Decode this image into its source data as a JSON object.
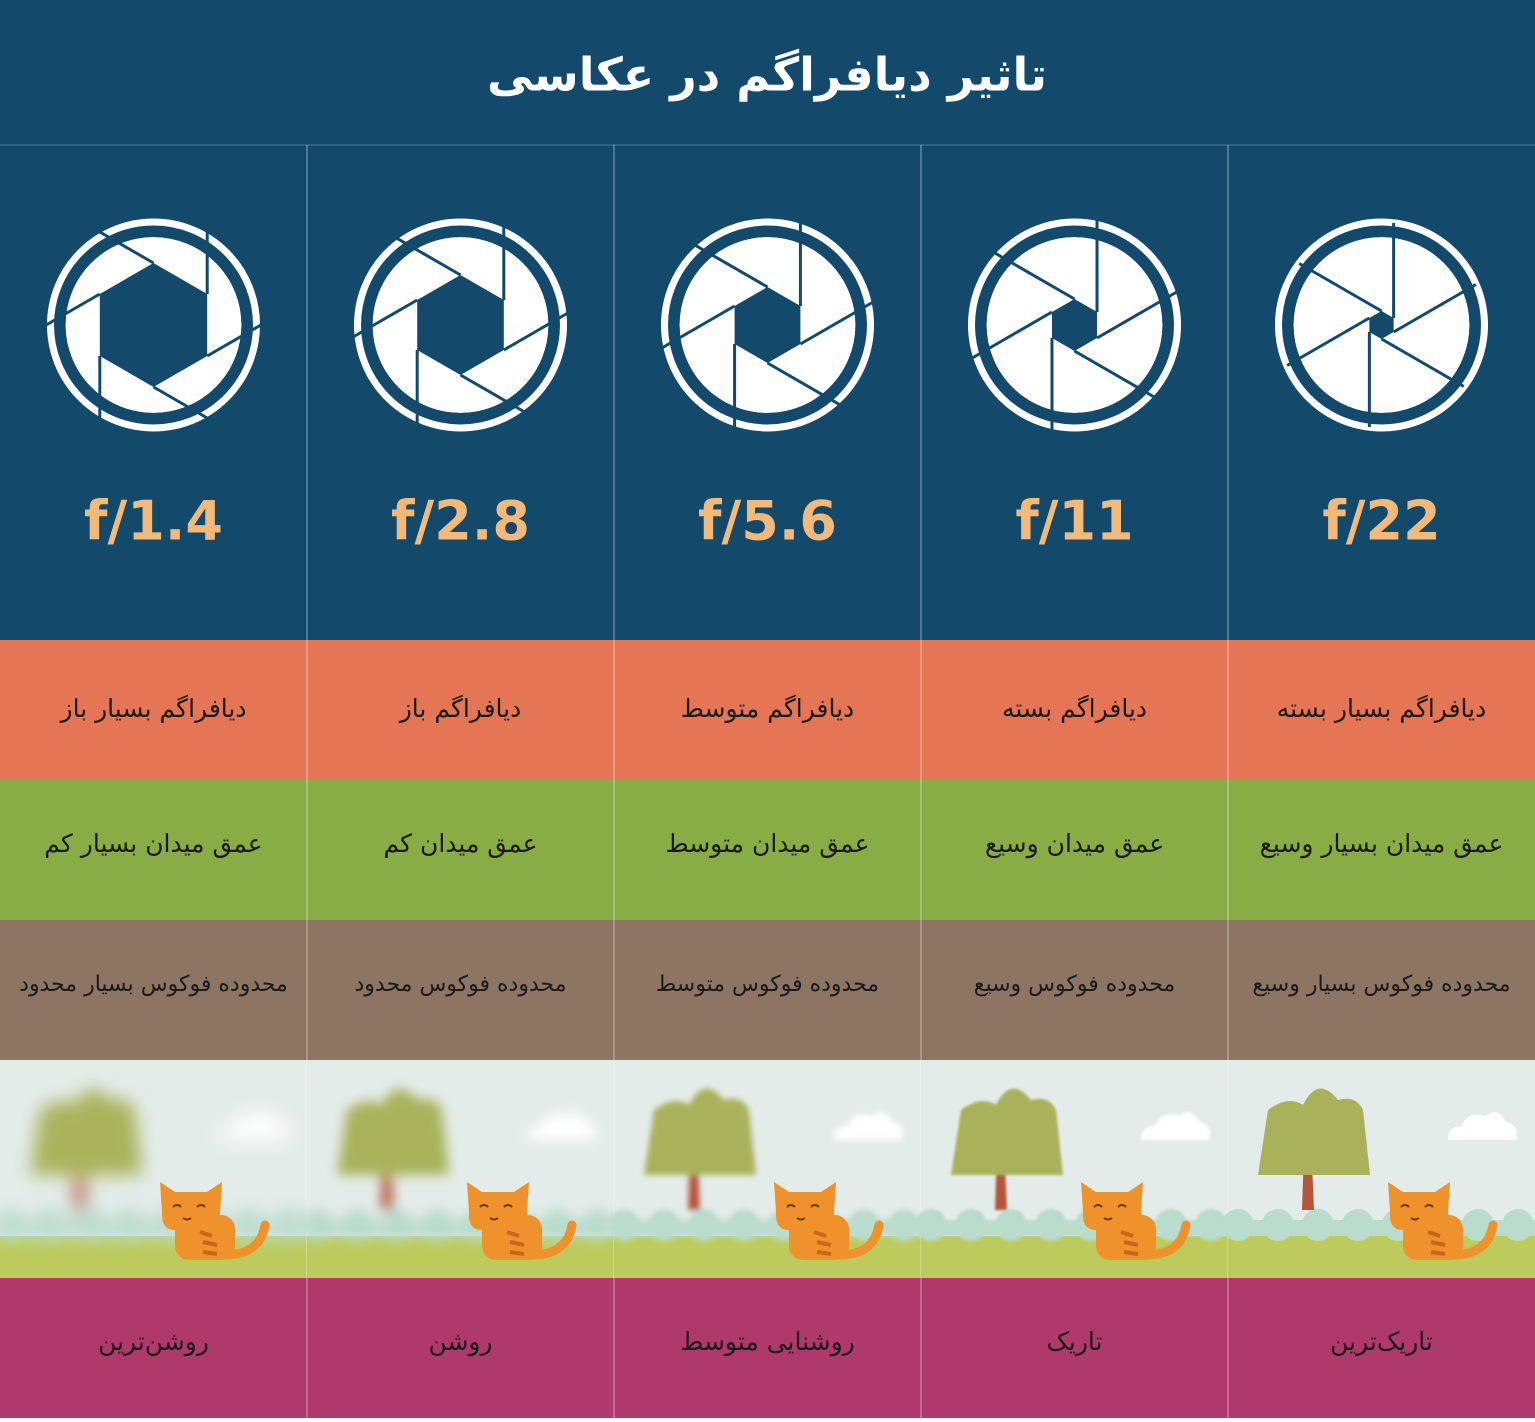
{
  "header": {
    "title": "تاثیر دیافراگم در عکاسی"
  },
  "columns": [
    {
      "f_stop": "f/1.4",
      "aperture": "دیافراگم بسیار باز",
      "depth_of_field": "عمق میدان بسیار کم",
      "focus_range": "محدوده فوکوس بسیار محدود",
      "brightness": "روشن‌ترین"
    },
    {
      "f_stop": "f/2.8",
      "aperture": "دیافراگم باز",
      "depth_of_field": "عمق میدان کم",
      "focus_range": "محدوده فوکوس محدود",
      "brightness": "روشن"
    },
    {
      "f_stop": "f/5.6",
      "aperture": "دیافراگم متوسط",
      "depth_of_field": "عمق میدان متوسط",
      "focus_range": "محدوده فوکوس متوسط",
      "brightness": "روشنایی متوسط"
    },
    {
      "f_stop": "f/11",
      "aperture": "دیافراگم بسته",
      "depth_of_field": "عمق میدان وسیع",
      "focus_range": "محدوده فوکوس وسیع",
      "brightness": "تاریک"
    },
    {
      "f_stop": "f/22",
      "aperture": "دیافراگم بسیار بسته",
      "depth_of_field": "عمق میدان بسیار وسیع",
      "focus_range": "محدوده فوکوس بسیار وسیع",
      "brightness": "تاریک‌ترین"
    }
  ]
}
